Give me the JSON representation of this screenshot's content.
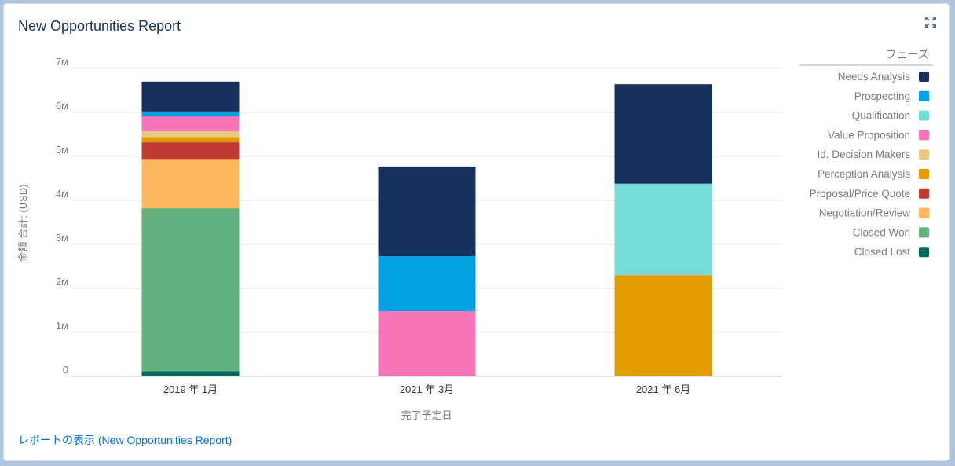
{
  "header": {
    "title": "New Opportunities Report",
    "expand_icon": "expand-icon"
  },
  "footer": {
    "link_label": "レポートの表示 (New Opportunities Report)"
  },
  "chart_data": {
    "type": "bar",
    "stacked": true,
    "categories": [
      "2019 年 1月",
      "2021 年 3月",
      "2021 年 6月"
    ],
    "xlabel": "完了予定日",
    "ylabel": "金額 合計: (USD)",
    "ylim": [
      0,
      7000000
    ],
    "yticks": [
      {
        "value": 0,
        "label": "0"
      },
      {
        "value": 1000000,
        "label": "1м"
      },
      {
        "value": 2000000,
        "label": "2м"
      },
      {
        "value": 3000000,
        "label": "3м"
      },
      {
        "value": 4000000,
        "label": "4м"
      },
      {
        "value": 5000000,
        "label": "5м"
      },
      {
        "value": 6000000,
        "label": "6м"
      },
      {
        "value": 7000000,
        "label": "7м"
      }
    ],
    "grid": true,
    "legend_title": "フェーズ",
    "legend_position": "right",
    "series": [
      {
        "name": "Needs Analysis",
        "color": "#16325c",
        "values": [
          680000,
          2040000,
          2260000
        ]
      },
      {
        "name": "Prospecting",
        "color": "#00a1e0",
        "values": [
          110000,
          1250000,
          0
        ]
      },
      {
        "name": "Qualification",
        "color": "#76ded9",
        "values": [
          0,
          0,
          2080000
        ]
      },
      {
        "name": "Value Proposition",
        "color": "#f774b8",
        "values": [
          340000,
          1480000,
          0
        ]
      },
      {
        "name": "Id. Decision Makers",
        "color": "#e8c97e",
        "values": [
          130000,
          0,
          0
        ]
      },
      {
        "name": "Perception Analysis",
        "color": "#e39c00",
        "values": [
          120000,
          0,
          2300000
        ]
      },
      {
        "name": "Proposal/Price Quote",
        "color": "#c23934",
        "values": [
          380000,
          0,
          0
        ]
      },
      {
        "name": "Negotiation/Review",
        "color": "#ffb75d",
        "values": [
          1120000,
          0,
          0
        ]
      },
      {
        "name": "Closed Won",
        "color": "#62b17e",
        "values": [
          3700000,
          0,
          0
        ]
      },
      {
        "name": "Closed Lost",
        "color": "#006b5b",
        "values": [
          120000,
          0,
          0
        ]
      }
    ]
  }
}
